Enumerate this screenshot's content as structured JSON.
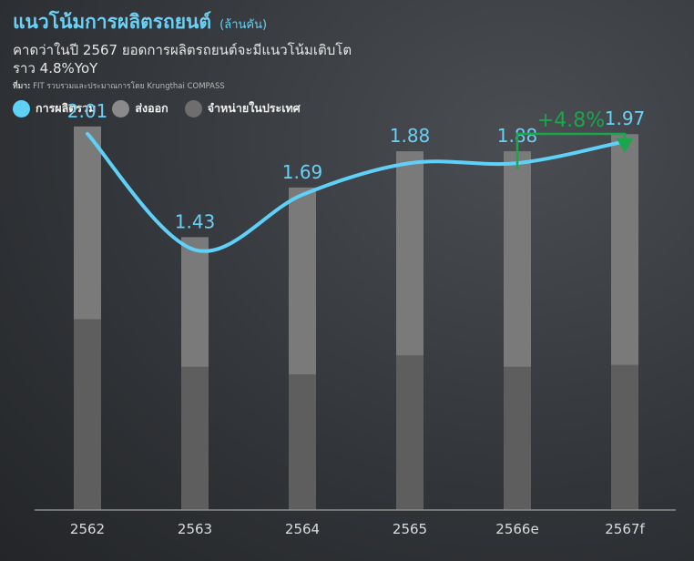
{
  "header": {
    "title": "แนวโน้มการผลิตรถยนต์",
    "unit": "(ล้านคัน)",
    "subtitle": "คาดว่าในปี 2567 ยอดการผลิตรถยนต์จะมีแนวโน้มเติบโต ราว 4.8%YoY",
    "source_label": "ที่มา:",
    "source_text": "FIT รวบรวมและประมาณการโดย Krungthai COMPASS"
  },
  "legend": [
    {
      "label": "การผลิตรวม",
      "color": "#5fd0f8"
    },
    {
      "label": "ส่งออก",
      "color": "#8a8a8a"
    },
    {
      "label": "จำหน่ายในประเทศ",
      "color": "#6e6e6e"
    }
  ],
  "chart_data": {
    "type": "bar",
    "categories": [
      "2562",
      "2563",
      "2564",
      "2565",
      "2566e",
      "2567f"
    ],
    "series": [
      {
        "name": "การผลิตรวม",
        "type": "line",
        "values": [
          2.01,
          1.43,
          1.69,
          1.88,
          1.88,
          1.97
        ]
      },
      {
        "name": "ส่งออก",
        "type": "stacked-bar",
        "values": [
          1.0,
          0.72,
          0.97,
          0.99,
          1.12,
          1.1
        ]
      },
      {
        "name": "จำหน่ายในประเทศ",
        "type": "stacked-bar",
        "values": [
          1.0,
          0.75,
          0.71,
          0.81,
          0.75,
          0.76
        ]
      }
    ],
    "data_labels": [
      "2.01",
      "1.43",
      "1.69",
      "1.88",
      "1.88",
      "1.97"
    ],
    "annotation": {
      "text": "+4.8%",
      "from": "2566e",
      "to": "2567f",
      "color": "#1aa64a"
    },
    "ylim": [
      0,
      2.1
    ],
    "grid": false,
    "colors": {
      "line": "#5fd0f8",
      "bar_top": "#7a7a7a",
      "bar_bottom": "#5e5e5e",
      "axis": "#8c8c8c",
      "tick": "#dcdcdc",
      "label": "#6ad0f5"
    }
  }
}
